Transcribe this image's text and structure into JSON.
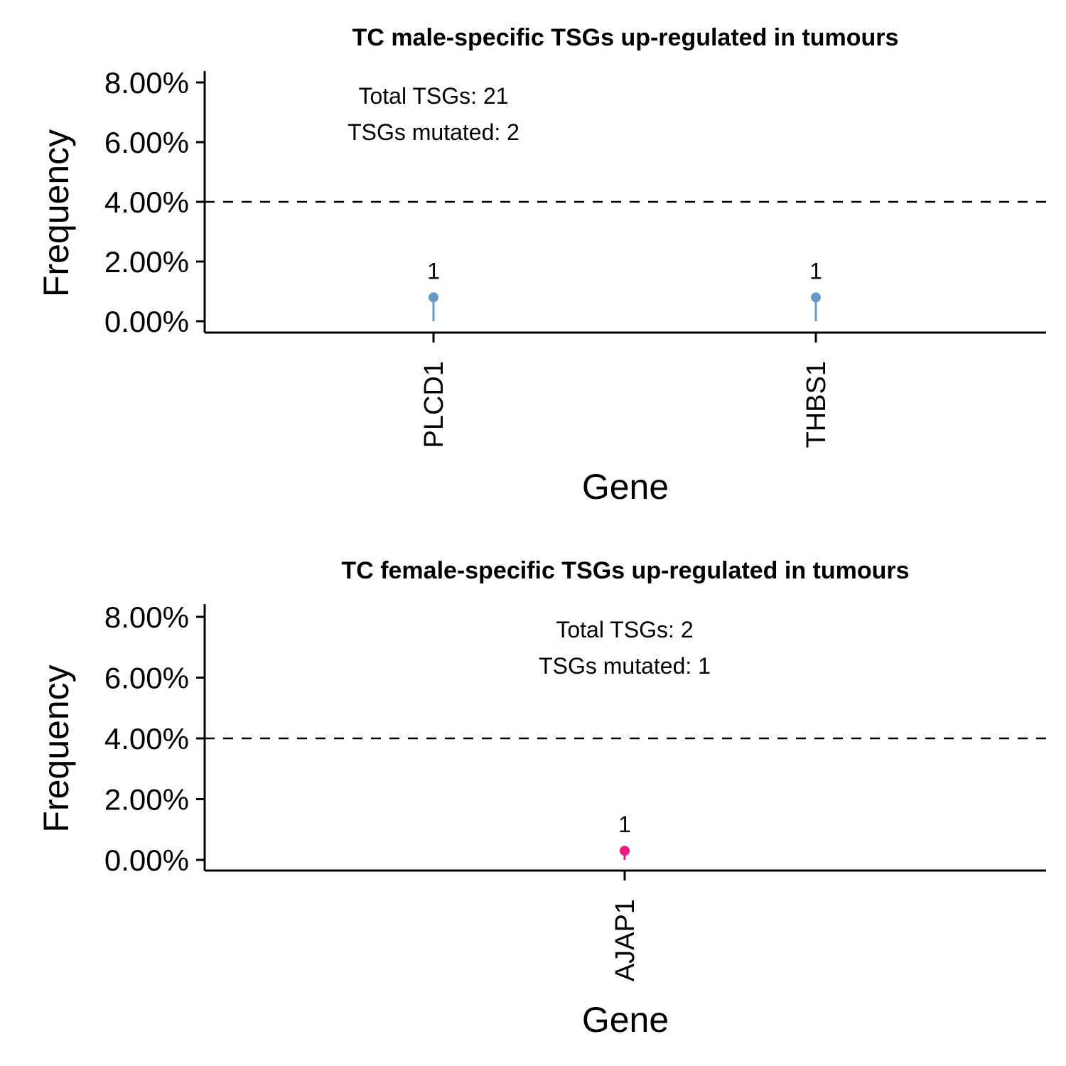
{
  "chart_data": [
    {
      "type": "lollipop",
      "title": "TC male-specific TSGs up-regulated in tumours",
      "xlabel": "Gene",
      "ylabel": "Frequency",
      "ylim": [
        0,
        8
      ],
      "yticks": [
        "0.00%",
        "2.00%",
        "4.00%",
        "6.00%",
        "8.00%"
      ],
      "ytick_values": [
        0,
        2,
        4,
        6,
        8
      ],
      "threshold": 4,
      "categories": [
        "PLCD1",
        "THBS1"
      ],
      "values": [
        0.8,
        0.8
      ],
      "labels": [
        "1",
        "1"
      ],
      "color": "#6699c3",
      "annotations": [
        "Total TSGs:  21",
        "TSGs mutated:  2"
      ],
      "grid": false
    },
    {
      "type": "lollipop",
      "title": "TC female-specific TSGs up-regulated in tumours",
      "xlabel": "Gene",
      "ylabel": "Frequency",
      "ylim": [
        0,
        8
      ],
      "yticks": [
        "0.00%",
        "2.00%",
        "4.00%",
        "6.00%",
        "8.00%"
      ],
      "ytick_values": [
        0,
        2,
        4,
        6,
        8
      ],
      "threshold": 4,
      "categories": [
        "AJAP1"
      ],
      "values": [
        0.3
      ],
      "labels": [
        "1"
      ],
      "color": "#f0197d",
      "annotations": [
        "Total TSGs:  2",
        "TSGs mutated:  1"
      ],
      "grid": false
    }
  ]
}
